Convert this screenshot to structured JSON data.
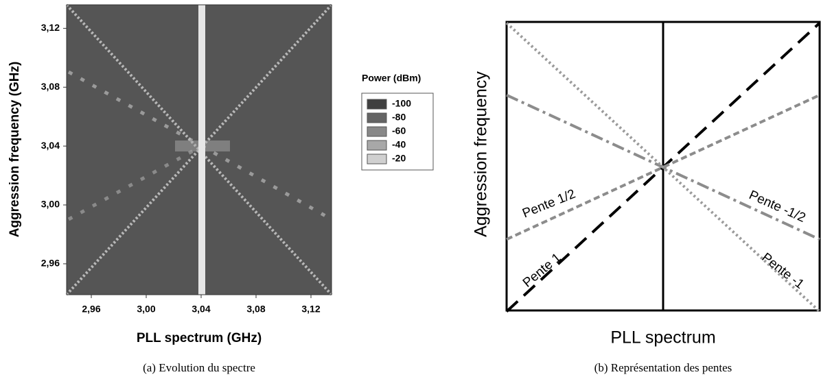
{
  "chart_data": [
    {
      "type": "heatmap",
      "xlabel": "PLL spectrum (GHz)",
      "ylabel": "Aggression frequency (GHz)",
      "caption": "(a) Evolution du spectre",
      "xlim": [
        2.942,
        3.135
      ],
      "ylim": [
        2.939,
        3.136
      ],
      "xticks": [
        {
          "value": 2.96,
          "label": "2,96"
        },
        {
          "value": 3.0,
          "label": "3,00"
        },
        {
          "value": 3.04,
          "label": "3,04"
        },
        {
          "value": 3.08,
          "label": "3,08"
        },
        {
          "value": 3.12,
          "label": "3,12"
        }
      ],
      "yticks": [
        {
          "value": 2.96,
          "label": "2,96"
        },
        {
          "value": 3.0,
          "label": "3,00"
        },
        {
          "value": 3.04,
          "label": "3,04"
        },
        {
          "value": 3.08,
          "label": "3,08"
        },
        {
          "value": 3.12,
          "label": "3,12"
        }
      ],
      "legend_title": "Power (dBm)",
      "levels": [
        -100,
        -80,
        -60,
        -40,
        -20
      ],
      "level_colors": [
        "#404040",
        "#646464",
        "#888888",
        "#a8a8a8",
        "#d0d0d0"
      ]
    },
    {
      "type": "line",
      "xlabel": "PLL spectrum",
      "ylabel": "Aggression frequency",
      "caption": "(b) Représentation des pentes",
      "series": [
        {
          "name": "Pente 1",
          "color": "#000000",
          "slope": 1,
          "dash": "22,12"
        },
        {
          "name": "Pente 1/2",
          "color": "#8c8c8c",
          "slope": 0.5,
          "dash": "9,5"
        },
        {
          "name": "Pente -1/2",
          "color": "#8c8c8c",
          "slope": -0.5,
          "dash": "18,6,4,6"
        },
        {
          "name": "Pente -1",
          "color": "#9a9a9a",
          "slope": -1,
          "dash": "3,4"
        }
      ]
    }
  ]
}
